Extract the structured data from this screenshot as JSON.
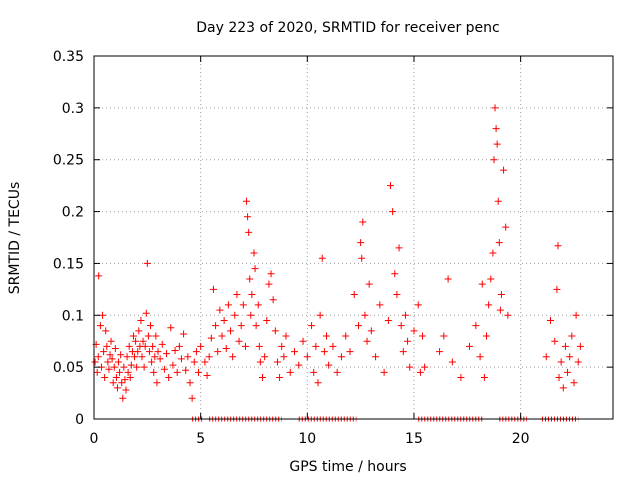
{
  "chart_data": {
    "type": "scatter",
    "title": "Day 223 of 2020, SRMTID for receiver penc",
    "xlabel": "GPS time / hours",
    "ylabel": "SRMTID / TECUs",
    "xlim": [
      0,
      24.33
    ],
    "ylim": [
      0,
      0.35
    ],
    "x_ticks": [
      0,
      5,
      10,
      15,
      20
    ],
    "y_ticks": [
      0,
      0.05,
      0.1,
      0.15,
      0.2,
      0.25,
      0.3,
      0.35
    ],
    "x_tick_labels": [
      "0",
      "5",
      "10",
      "15",
      "20"
    ],
    "y_tick_labels": [
      "0",
      "0.05",
      "0.1",
      "0.15",
      "0.2",
      "0.25",
      "0.3",
      "0.35"
    ],
    "grid": true,
    "marker": "+",
    "color": "#ff0000",
    "zero_line_segments": [
      [
        4.6,
        5.1
      ],
      [
        5.4,
        8.8
      ],
      [
        9.6,
        12.3
      ],
      [
        15.2,
        18.2
      ],
      [
        19.0,
        20.3
      ],
      [
        21.0,
        22.7
      ]
    ],
    "series": [
      {
        "name": "SRMTID",
        "points": [
          [
            0.05,
            0.055
          ],
          [
            0.1,
            0.072
          ],
          [
            0.15,
            0.045
          ],
          [
            0.2,
            0.06
          ],
          [
            0.22,
            0.138
          ],
          [
            0.3,
            0.09
          ],
          [
            0.35,
            0.05
          ],
          [
            0.4,
            0.1
          ],
          [
            0.45,
            0.065
          ],
          [
            0.5,
            0.04
          ],
          [
            0.55,
            0.085
          ],
          [
            0.6,
            0.07
          ],
          [
            0.65,
            0.055
          ],
          [
            0.7,
            0.048
          ],
          [
            0.75,
            0.062
          ],
          [
            0.8,
            0.075
          ],
          [
            0.85,
            0.058
          ],
          [
            0.9,
            0.035
          ],
          [
            0.95,
            0.05
          ],
          [
            1.0,
            0.068
          ],
          [
            1.05,
            0.04
          ],
          [
            1.1,
            0.03
          ],
          [
            1.15,
            0.055
          ],
          [
            1.2,
            0.045
          ],
          [
            1.25,
            0.062
          ],
          [
            1.3,
            0.035
          ],
          [
            1.35,
            0.02
          ],
          [
            1.4,
            0.05
          ],
          [
            1.45,
            0.038
          ],
          [
            1.5,
            0.028
          ],
          [
            1.55,
            0.06
          ],
          [
            1.6,
            0.045
          ],
          [
            1.65,
            0.07
          ],
          [
            1.7,
            0.04
          ],
          [
            1.75,
            0.052
          ],
          [
            1.8,
            0.065
          ],
          [
            1.85,
            0.08
          ],
          [
            1.9,
            0.06
          ],
          [
            1.95,
            0.075
          ],
          [
            2.0,
            0.05
          ],
          [
            2.05,
            0.065
          ],
          [
            2.1,
            0.085
          ],
          [
            2.15,
            0.07
          ],
          [
            2.2,
            0.095
          ],
          [
            2.25,
            0.06
          ],
          [
            2.3,
            0.075
          ],
          [
            2.35,
            0.05
          ],
          [
            2.4,
            0.07
          ],
          [
            2.45,
            0.102
          ],
          [
            2.5,
            0.15
          ],
          [
            2.55,
            0.08
          ],
          [
            2.6,
            0.065
          ],
          [
            2.65,
            0.09
          ],
          [
            2.7,
            0.055
          ],
          [
            2.75,
            0.07
          ],
          [
            2.8,
            0.045
          ],
          [
            2.85,
            0.06
          ],
          [
            2.9,
            0.08
          ],
          [
            2.95,
            0.035
          ],
          [
            3.0,
            0.065
          ],
          [
            3.1,
            0.058
          ],
          [
            3.2,
            0.072
          ],
          [
            3.3,
            0.048
          ],
          [
            3.4,
            0.063
          ],
          [
            3.5,
            0.04
          ],
          [
            3.6,
            0.088
          ],
          [
            3.7,
            0.052
          ],
          [
            3.8,
            0.066
          ],
          [
            3.9,
            0.045
          ],
          [
            4.0,
            0.07
          ],
          [
            4.1,
            0.058
          ],
          [
            4.2,
            0.082
          ],
          [
            4.3,
            0.047
          ],
          [
            4.4,
            0.06
          ],
          [
            4.5,
            0.035
          ],
          [
            4.6,
            0.02
          ],
          [
            4.7,
            0.055
          ],
          [
            4.8,
            0.065
          ],
          [
            4.9,
            0.045
          ],
          [
            5.0,
            0.07
          ],
          [
            5.2,
            0.055
          ],
          [
            5.3,
            0.042
          ],
          [
            5.4,
            0.06
          ],
          [
            5.5,
            0.078
          ],
          [
            5.6,
            0.125
          ],
          [
            5.7,
            0.09
          ],
          [
            5.8,
            0.065
          ],
          [
            5.9,
            0.105
          ],
          [
            6.0,
            0.08
          ],
          [
            6.1,
            0.095
          ],
          [
            6.2,
            0.068
          ],
          [
            6.3,
            0.11
          ],
          [
            6.4,
            0.085
          ],
          [
            6.5,
            0.06
          ],
          [
            6.6,
            0.1
          ],
          [
            6.7,
            0.12
          ],
          [
            6.8,
            0.075
          ],
          [
            6.9,
            0.09
          ],
          [
            7.0,
            0.11
          ],
          [
            7.1,
            0.07
          ],
          [
            7.15,
            0.21
          ],
          [
            7.2,
            0.195
          ],
          [
            7.25,
            0.18
          ],
          [
            7.3,
            0.135
          ],
          [
            7.35,
            0.1
          ],
          [
            7.4,
            0.12
          ],
          [
            7.5,
            0.16
          ],
          [
            7.55,
            0.145
          ],
          [
            7.6,
            0.09
          ],
          [
            7.7,
            0.11
          ],
          [
            7.75,
            0.07
          ],
          [
            7.8,
            0.055
          ],
          [
            7.9,
            0.04
          ],
          [
            8.0,
            0.06
          ],
          [
            8.1,
            0.095
          ],
          [
            8.2,
            0.13
          ],
          [
            8.3,
            0.14
          ],
          [
            8.4,
            0.115
          ],
          [
            8.5,
            0.085
          ],
          [
            8.6,
            0.055
          ],
          [
            8.7,
            0.04
          ],
          [
            8.8,
            0.07
          ],
          [
            8.9,
            0.06
          ],
          [
            9.0,
            0.08
          ],
          [
            9.2,
            0.045
          ],
          [
            9.4,
            0.065
          ],
          [
            9.6,
            0.052
          ],
          [
            9.8,
            0.075
          ],
          [
            10.0,
            0.06
          ],
          [
            10.2,
            0.09
          ],
          [
            10.3,
            0.045
          ],
          [
            10.4,
            0.07
          ],
          [
            10.5,
            0.035
          ],
          [
            10.6,
            0.1
          ],
          [
            10.7,
            0.155
          ],
          [
            10.8,
            0.065
          ],
          [
            10.9,
            0.08
          ],
          [
            11.0,
            0.052
          ],
          [
            11.2,
            0.07
          ],
          [
            11.4,
            0.045
          ],
          [
            11.6,
            0.06
          ],
          [
            11.8,
            0.08
          ],
          [
            12.0,
            0.065
          ],
          [
            12.2,
            0.12
          ],
          [
            12.4,
            0.09
          ],
          [
            12.5,
            0.17
          ],
          [
            12.55,
            0.155
          ],
          [
            12.6,
            0.19
          ],
          [
            12.7,
            0.1
          ],
          [
            12.8,
            0.075
          ],
          [
            12.9,
            0.13
          ],
          [
            13.0,
            0.085
          ],
          [
            13.2,
            0.06
          ],
          [
            13.4,
            0.11
          ],
          [
            13.6,
            0.045
          ],
          [
            13.8,
            0.095
          ],
          [
            13.9,
            0.225
          ],
          [
            14.0,
            0.2
          ],
          [
            14.1,
            0.14
          ],
          [
            14.2,
            0.12
          ],
          [
            14.3,
            0.165
          ],
          [
            14.4,
            0.09
          ],
          [
            14.5,
            0.065
          ],
          [
            14.6,
            0.1
          ],
          [
            14.7,
            0.075
          ],
          [
            14.8,
            0.05
          ],
          [
            15.0,
            0.085
          ],
          [
            15.2,
            0.11
          ],
          [
            15.3,
            0.045
          ],
          [
            15.4,
            0.08
          ],
          [
            15.5,
            0.05
          ],
          [
            16.2,
            0.065
          ],
          [
            16.4,
            0.08
          ],
          [
            16.6,
            0.135
          ],
          [
            16.8,
            0.055
          ],
          [
            17.2,
            0.04
          ],
          [
            17.6,
            0.07
          ],
          [
            17.9,
            0.09
          ],
          [
            18.1,
            0.06
          ],
          [
            18.2,
            0.13
          ],
          [
            18.3,
            0.04
          ],
          [
            18.4,
            0.08
          ],
          [
            18.5,
            0.11
          ],
          [
            18.6,
            0.135
          ],
          [
            18.7,
            0.16
          ],
          [
            18.75,
            0.25
          ],
          [
            18.8,
            0.3
          ],
          [
            18.85,
            0.28
          ],
          [
            18.9,
            0.265
          ],
          [
            18.95,
            0.21
          ],
          [
            19.0,
            0.17
          ],
          [
            19.05,
            0.105
          ],
          [
            19.1,
            0.12
          ],
          [
            19.2,
            0.24
          ],
          [
            19.3,
            0.185
          ],
          [
            19.4,
            0.1
          ],
          [
            21.2,
            0.06
          ],
          [
            21.4,
            0.095
          ],
          [
            21.6,
            0.075
          ],
          [
            21.7,
            0.125
          ],
          [
            21.75,
            0.167
          ],
          [
            21.8,
            0.04
          ],
          [
            21.9,
            0.055
          ],
          [
            22.0,
            0.03
          ],
          [
            22.1,
            0.07
          ],
          [
            22.2,
            0.045
          ],
          [
            22.3,
            0.06
          ],
          [
            22.4,
            0.08
          ],
          [
            22.5,
            0.035
          ],
          [
            22.6,
            0.1
          ],
          [
            22.7,
            0.055
          ],
          [
            22.8,
            0.07
          ]
        ]
      }
    ]
  }
}
